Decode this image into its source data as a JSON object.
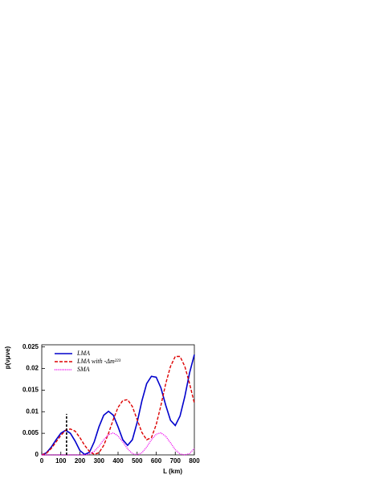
{
  "chart_data": {
    "type": "line",
    "x_label": "L (km)",
    "y_label": "p(νμνe)",
    "x": [
      0,
      25,
      50,
      75,
      100,
      125,
      150,
      175,
      200,
      225,
      250,
      275,
      300,
      325,
      350,
      375,
      400,
      425,
      450,
      475,
      500,
      525,
      550,
      575,
      600,
      625,
      650,
      675,
      700,
      725,
      750,
      775,
      800
    ],
    "series": [
      {
        "name": "LMA",
        "color": "#0000cc",
        "dash": "none",
        "values": [
          0,
          0.0005,
          0.0018,
          0.0035,
          0.005,
          0.0057,
          0.005,
          0.0032,
          0.001,
          0.0001,
          0.0006,
          0.003,
          0.0065,
          0.0092,
          0.0101,
          0.0092,
          0.0065,
          0.0035,
          0.0022,
          0.0035,
          0.0075,
          0.0125,
          0.0165,
          0.0182,
          0.018,
          0.0155,
          0.0115,
          0.008,
          0.0068,
          0.009,
          0.0135,
          0.019,
          0.0232
        ]
      },
      {
        "name": "LMA with -Δm²²³",
        "color": "#dd0000",
        "dash": "4 2",
        "values": [
          0,
          0.0004,
          0.0015,
          0.003,
          0.0045,
          0.0057,
          0.006,
          0.0055,
          0.004,
          0.0022,
          0.0008,
          0.0001,
          0.0005,
          0.0022,
          0.005,
          0.0082,
          0.011,
          0.0126,
          0.0128,
          0.0112,
          0.0082,
          0.0052,
          0.0035,
          0.004,
          0.007,
          0.0115,
          0.0165,
          0.0205,
          0.0228,
          0.0228,
          0.0205,
          0.0165,
          0.012
        ]
      },
      {
        "name": "SMA",
        "color": "#ee00ee",
        "dash": "1 1.2",
        "values": [
          0,
          0,
          0,
          0,
          0,
          0,
          0,
          0,
          0,
          0,
          0.0002,
          0.0008,
          0.002,
          0.0035,
          0.0047,
          0.0051,
          0.0044,
          0.003,
          0.0014,
          0.0003,
          0,
          0.0005,
          0.0018,
          0.0035,
          0.0048,
          0.0051,
          0.0043,
          0.0028,
          0.0012,
          0.0002,
          0,
          0.0003,
          0.0015
        ]
      }
    ],
    "marker": {
      "x": 130,
      "y": 0.0095,
      "color": "#000000"
    },
    "xlim": [
      0,
      800
    ],
    "xticks": [
      0,
      100,
      200,
      300,
      400,
      500,
      600,
      700,
      800
    ],
    "ylim": [
      0,
      0.0255
    ],
    "yticks": [
      0,
      0.005,
      0.01,
      0.015,
      0.02,
      0.025
    ]
  }
}
